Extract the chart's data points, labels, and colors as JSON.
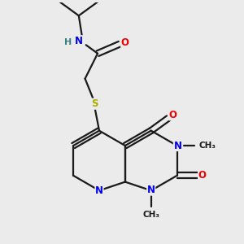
{
  "bg_color": "#ebebeb",
  "bond_color": "#1a1a1a",
  "bond_width": 1.6,
  "atom_colors": {
    "N": "#0000ee",
    "O": "#ee0000",
    "S": "#aaaa00",
    "H": "#3a8080",
    "C": "#1a1a1a"
  },
  "font_size_atom": 8.5,
  "font_size_small": 7.5
}
